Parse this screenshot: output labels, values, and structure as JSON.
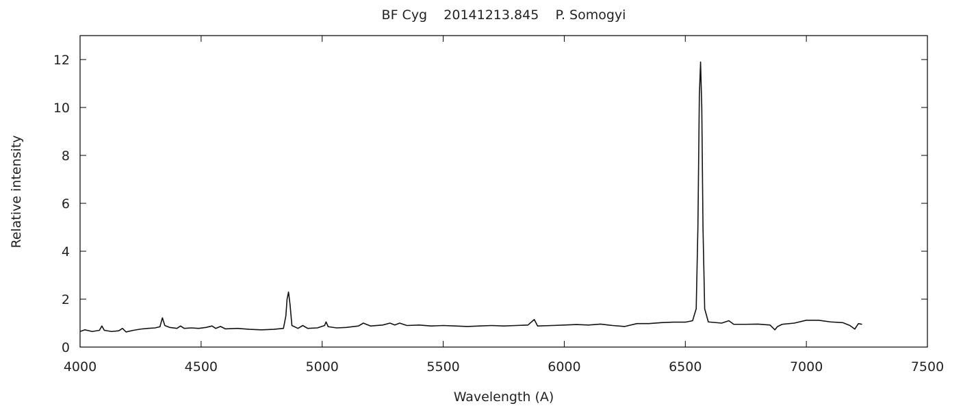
{
  "chart_data": {
    "type": "line",
    "title": "BF Cyg    20141213.845    P. Somogyi",
    "x_label": "Wavelength (A)",
    "y_label": "Relative intensity",
    "color": "#111111",
    "xlim": [
      4000,
      7500
    ],
    "ylim": [
      0,
      13
    ],
    "xticks": [
      4000,
      4500,
      5000,
      5500,
      6000,
      6500,
      7000,
      7500
    ],
    "yticks": [
      0,
      2,
      4,
      6,
      8,
      10,
      12
    ],
    "x": [
      4000,
      4020,
      4050,
      4080,
      4090,
      4100,
      4130,
      4160,
      4175,
      4190,
      4220,
      4250,
      4280,
      4310,
      4330,
      4340,
      4350,
      4370,
      4400,
      4415,
      4430,
      4460,
      4490,
      4520,
      4545,
      4560,
      4580,
      4600,
      4650,
      4700,
      4750,
      4800,
      4840,
      4850,
      4855,
      4861,
      4867,
      4875,
      4900,
      4920,
      4940,
      4980,
      5010,
      5016,
      5025,
      5060,
      5100,
      5150,
      5170,
      5200,
      5250,
      5280,
      5300,
      5320,
      5350,
      5400,
      5450,
      5500,
      5550,
      5600,
      5650,
      5700,
      5750,
      5800,
      5850,
      5876,
      5890,
      5950,
      6000,
      6050,
      6100,
      6150,
      6200,
      6250,
      6300,
      6350,
      6400,
      6450,
      6500,
      6530,
      6545,
      6552,
      6558,
      6563,
      6568,
      6573,
      6580,
      6595,
      6650,
      6680,
      6700,
      6750,
      6800,
      6850,
      6870,
      6880,
      6900,
      6950,
      7000,
      7050,
      7100,
      7150,
      7180,
      7200,
      7215,
      7230
    ],
    "values": [
      0.65,
      0.72,
      0.65,
      0.7,
      0.88,
      0.7,
      0.65,
      0.68,
      0.78,
      0.63,
      0.7,
      0.75,
      0.78,
      0.8,
      0.85,
      1.22,
      0.9,
      0.82,
      0.78,
      0.88,
      0.78,
      0.8,
      0.78,
      0.82,
      0.88,
      0.78,
      0.86,
      0.76,
      0.78,
      0.74,
      0.72,
      0.74,
      0.78,
      1.3,
      2.0,
      2.3,
      1.8,
      0.9,
      0.78,
      0.9,
      0.78,
      0.8,
      0.9,
      1.05,
      0.85,
      0.8,
      0.82,
      0.88,
      1.0,
      0.88,
      0.92,
      1.0,
      0.92,
      1.0,
      0.9,
      0.92,
      0.88,
      0.9,
      0.88,
      0.86,
      0.88,
      0.9,
      0.88,
      0.9,
      0.92,
      1.15,
      0.88,
      0.9,
      0.92,
      0.94,
      0.92,
      0.96,
      0.9,
      0.86,
      0.98,
      0.98,
      1.02,
      1.04,
      1.04,
      1.1,
      1.6,
      5,
      10.5,
      11.9,
      10,
      5,
      1.6,
      1.05,
      1.0,
      1.1,
      0.95,
      0.95,
      0.96,
      0.92,
      0.72,
      0.85,
      0.95,
      1.0,
      1.12,
      1.12,
      1.05,
      1.02,
      0.9,
      0.75,
      0.98,
      0.95
    ]
  }
}
